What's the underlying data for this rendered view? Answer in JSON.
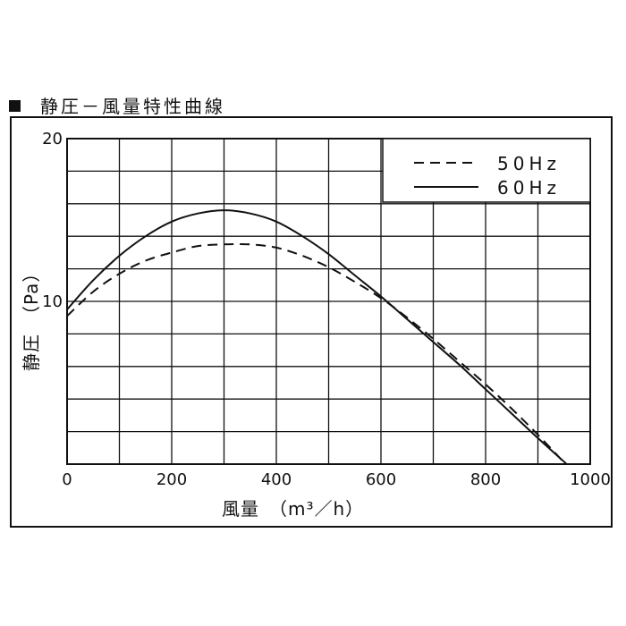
{
  "title": "静圧－風量特性曲線",
  "chart_data": {
    "type": "line",
    "xlabel": "風量　（m³／h）",
    "ylabel": "静圧　（Pa）",
    "xlim": [
      0,
      1000
    ],
    "ylim": [
      0,
      20
    ],
    "x_ticks": [
      "0",
      "200",
      "400",
      "600",
      "800",
      "1000"
    ],
    "y_ticks": [
      "10",
      "20"
    ],
    "grid": true,
    "legend_position": "top-right",
    "series": [
      {
        "name": "50Hz",
        "style": "dashed",
        "color": "#111111",
        "x": [
          0,
          50,
          100,
          150,
          200,
          250,
          300,
          350,
          400,
          450,
          500,
          550,
          600,
          650,
          700,
          750,
          800,
          850,
          900,
          950
        ],
        "y": [
          9.1,
          10.6,
          11.7,
          12.5,
          13.0,
          13.4,
          13.5,
          13.5,
          13.3,
          12.8,
          12.1,
          11.2,
          10.2,
          9.0,
          7.7,
          6.3,
          4.9,
          3.4,
          1.8,
          0.1
        ]
      },
      {
        "name": "60Hz",
        "style": "solid",
        "color": "#111111",
        "x": [
          0,
          50,
          100,
          150,
          200,
          250,
          300,
          350,
          400,
          450,
          500,
          550,
          600,
          650,
          700,
          750,
          800,
          850,
          900,
          955
        ],
        "y": [
          9.5,
          11.3,
          12.8,
          14.0,
          14.9,
          15.4,
          15.6,
          15.4,
          14.9,
          14.0,
          12.9,
          11.6,
          10.3,
          8.9,
          7.5,
          6.1,
          4.6,
          3.1,
          1.6,
          0.0
        ]
      }
    ]
  }
}
